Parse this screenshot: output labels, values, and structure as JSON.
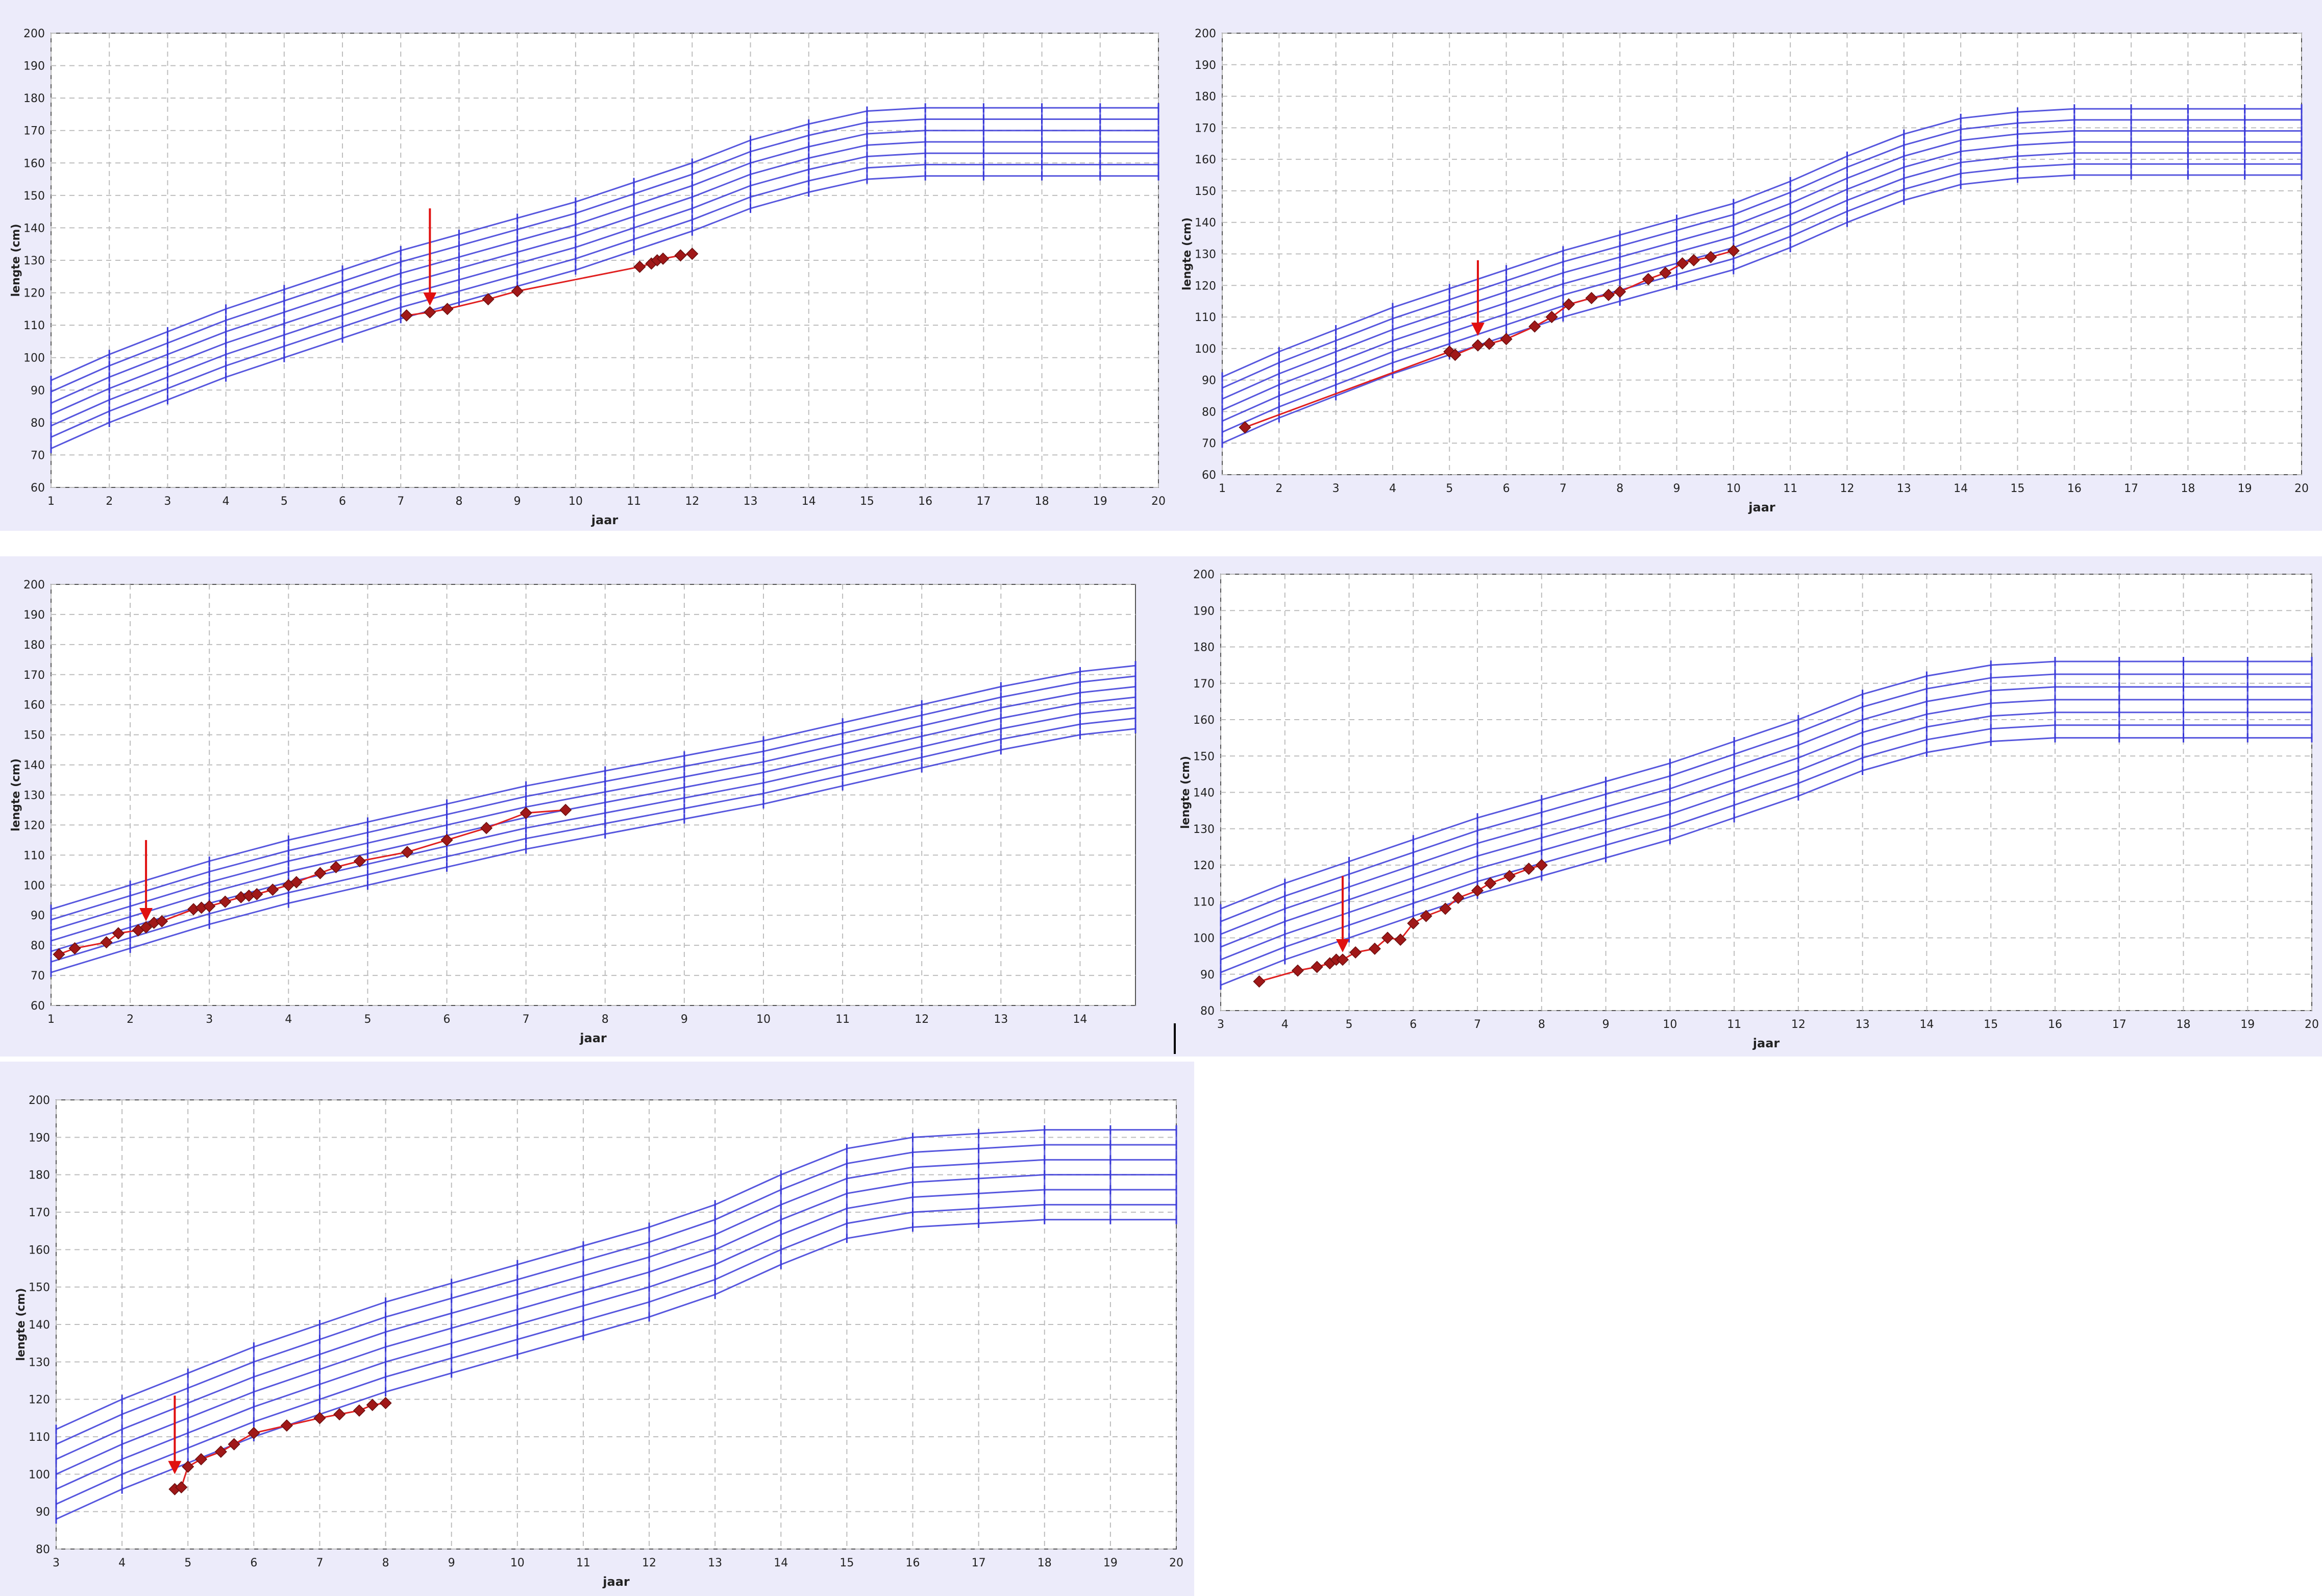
{
  "colors": {
    "panel_bg": "#ecebfa",
    "plot_bg": "#ffffff",
    "percentile_line": "#3a3ad8",
    "patient_line": "#e02020",
    "patient_marker": "#a01818",
    "arrow": "#e01010",
    "grid": "#bdbdbd",
    "text": "#222222"
  },
  "chart_data": [
    {
      "type": "line",
      "xlabel": "jaar",
      "ylabel": "lengte (cm)",
      "xlim": [
        1,
        20
      ],
      "ylim": [
        60,
        200
      ],
      "xticks": [
        1,
        2,
        3,
        4,
        5,
        6,
        7,
        8,
        9,
        10,
        11,
        12,
        13,
        14,
        15,
        16,
        17,
        18,
        19,
        20
      ],
      "yticks": [
        60,
        70,
        80,
        90,
        100,
        110,
        120,
        130,
        140,
        150,
        160,
        170,
        180,
        190,
        200
      ],
      "grid": true,
      "percentile_x": [
        1,
        2,
        3,
        4,
        5,
        6,
        7,
        8,
        9,
        10,
        11,
        12,
        13,
        14,
        15,
        16,
        17,
        18,
        19,
        20
      ],
      "percentile_base": [
        72,
        80,
        87,
        94,
        100,
        106,
        112,
        117,
        122,
        127,
        133,
        139,
        146,
        151,
        155,
        156,
        156,
        156,
        156,
        156
      ],
      "percentile_steps": [
        0,
        3.5,
        7,
        10.5,
        14,
        17.5,
        21
      ],
      "series": [
        {
          "values": [
            [
              7.1,
              113
            ],
            [
              7.5,
              114
            ],
            [
              7.8,
              115
            ],
            [
              8.5,
              118
            ],
            [
              9,
              120.5
            ],
            [
              11.1,
              128
            ],
            [
              11.3,
              129
            ],
            [
              11.4,
              130
            ],
            [
              11.5,
              130.5
            ],
            [
              11.8,
              131.5
            ],
            [
              12,
              132
            ]
          ]
        }
      ],
      "arrow": {
        "x": 7.5,
        "y_from": 146,
        "y_to": 116
      }
    },
    {
      "type": "line",
      "xlabel": "jaar",
      "ylabel": "lengte (cm)",
      "xlim": [
        1,
        20
      ],
      "ylim": [
        60,
        200
      ],
      "xticks": [
        1,
        2,
        3,
        4,
        5,
        6,
        7,
        8,
        9,
        10,
        11,
        12,
        13,
        14,
        15,
        16,
        17,
        18,
        19,
        20
      ],
      "yticks": [
        60,
        70,
        80,
        90,
        100,
        110,
        120,
        130,
        140,
        150,
        160,
        170,
        180,
        190,
        200
      ],
      "grid": true,
      "percentile_x": [
        1,
        2,
        3,
        4,
        5,
        6,
        7,
        8,
        9,
        10,
        11,
        12,
        13,
        14,
        15,
        16,
        17,
        18,
        19,
        20
      ],
      "percentile_base": [
        70,
        78,
        85,
        92,
        98,
        104,
        110,
        115,
        120,
        125,
        132,
        140,
        147,
        152,
        154,
        155,
        155,
        155,
        155,
        155
      ],
      "percentile_steps": [
        0,
        3.5,
        7,
        10.5,
        14,
        17.5,
        21
      ],
      "series": [
        {
          "values": [
            [
              1.4,
              75
            ],
            [
              5,
              99
            ],
            [
              5.1,
              98
            ],
            [
              5.5,
              101
            ],
            [
              5.7,
              101.5
            ],
            [
              6,
              103
            ],
            [
              6.5,
              107
            ],
            [
              6.8,
              110
            ],
            [
              7.1,
              114
            ],
            [
              7.5,
              116
            ],
            [
              7.8,
              117
            ],
            [
              8,
              118
            ],
            [
              8.5,
              122
            ],
            [
              8.8,
              124
            ],
            [
              9.1,
              127
            ],
            [
              9.3,
              128
            ],
            [
              9.6,
              129
            ],
            [
              10,
              131
            ]
          ]
        }
      ],
      "arrow": {
        "x": 5.5,
        "y_from": 128,
        "y_to": 104
      }
    },
    {
      "type": "line",
      "xlabel": "jaar",
      "ylabel": "lengte (cm)",
      "xlim": [
        1,
        14.7
      ],
      "ylim": [
        60,
        200
      ],
      "xticks": [
        1,
        2,
        3,
        4,
        5,
        6,
        7,
        8,
        9,
        10,
        11,
        12,
        13,
        14
      ],
      "yticks": [
        60,
        70,
        80,
        90,
        100,
        110,
        120,
        130,
        140,
        150,
        160,
        170,
        180,
        190,
        200
      ],
      "grid": true,
      "percentile_x": [
        1,
        2,
        3,
        4,
        5,
        6,
        7,
        8,
        9,
        10,
        11,
        12,
        13,
        14,
        14.7
      ],
      "percentile_base": [
        71,
        79,
        87,
        94,
        100,
        106,
        112,
        117,
        122,
        127,
        133,
        139,
        145,
        150,
        152
      ],
      "percentile_steps": [
        0,
        3.5,
        7,
        10.5,
        14,
        17.5,
        21
      ],
      "series": [
        {
          "values": [
            [
              1.1,
              77
            ],
            [
              1.3,
              79
            ],
            [
              1.7,
              81
            ],
            [
              1.85,
              84
            ],
            [
              2.1,
              85
            ],
            [
              2.2,
              86
            ],
            [
              2.3,
              87.5
            ],
            [
              2.4,
              88
            ],
            [
              2.8,
              92
            ],
            [
              2.9,
              92.5
            ],
            [
              3,
              93
            ],
            [
              3.2,
              94.5
            ],
            [
              3.4,
              96
            ],
            [
              3.5,
              96.5
            ],
            [
              3.6,
              97
            ],
            [
              3.8,
              98.5
            ],
            [
              4,
              100
            ],
            [
              4.1,
              101
            ],
            [
              4.4,
              104
            ],
            [
              4.6,
              106
            ],
            [
              4.9,
              108
            ],
            [
              5.5,
              111
            ],
            [
              6,
              115
            ],
            [
              6.5,
              119
            ],
            [
              7,
              124
            ],
            [
              7.5,
              125
            ]
          ]
        }
      ],
      "arrow": {
        "x": 2.2,
        "y_from": 115,
        "y_to": 88
      }
    },
    {
      "type": "line",
      "xlabel": "jaar",
      "ylabel": "lengte (cm)",
      "xlim": [
        3,
        20
      ],
      "ylim": [
        80,
        200
      ],
      "xticks": [
        3,
        4,
        5,
        6,
        7,
        8,
        9,
        10,
        11,
        12,
        13,
        14,
        15,
        16,
        17,
        18,
        19,
        20
      ],
      "yticks": [
        80,
        90,
        100,
        110,
        120,
        130,
        140,
        150,
        160,
        170,
        180,
        190,
        200
      ],
      "grid": true,
      "percentile_x": [
        3,
        4,
        5,
        6,
        7,
        8,
        9,
        10,
        11,
        12,
        13,
        14,
        15,
        16,
        17,
        18,
        19,
        20
      ],
      "percentile_base": [
        87,
        94,
        100,
        106,
        112,
        117,
        122,
        127,
        133,
        139,
        146,
        151,
        154,
        155,
        155,
        155,
        155,
        155
      ],
      "percentile_steps": [
        0,
        3.5,
        7,
        10.5,
        14,
        17.5,
        21
      ],
      "series": [
        {
          "values": [
            [
              3.6,
              88
            ],
            [
              4.2,
              91
            ],
            [
              4.5,
              92
            ],
            [
              4.7,
              93
            ],
            [
              4.8,
              94
            ],
            [
              4.9,
              94
            ],
            [
              5.1,
              96
            ],
            [
              5.4,
              97
            ],
            [
              5.6,
              100
            ],
            [
              5.8,
              99.5
            ],
            [
              6,
              104
            ],
            [
              6.2,
              106
            ],
            [
              6.5,
              108
            ],
            [
              6.7,
              111
            ],
            [
              7,
              113
            ],
            [
              7.2,
              115
            ],
            [
              7.5,
              117
            ],
            [
              7.8,
              119
            ],
            [
              8,
              120
            ]
          ]
        }
      ],
      "arrow": {
        "x": 4.9,
        "y_from": 117,
        "y_to": 96
      }
    },
    {
      "type": "line",
      "xlabel": "jaar",
      "ylabel": "lengte (cm)",
      "xlim": [
        3,
        20
      ],
      "ylim": [
        80,
        200
      ],
      "xticks": [
        3,
        4,
        5,
        6,
        7,
        8,
        9,
        10,
        11,
        12,
        13,
        14,
        15,
        16,
        17,
        18,
        19,
        20
      ],
      "yticks": [
        80,
        90,
        100,
        110,
        120,
        130,
        140,
        150,
        160,
        170,
        180,
        190,
        200
      ],
      "grid": true,
      "percentile_x": [
        3,
        4,
        5,
        6,
        7,
        8,
        9,
        10,
        11,
        12,
        13,
        14,
        15,
        16,
        17,
        18,
        19,
        20
      ],
      "percentile_base": [
        88,
        96,
        103,
        110,
        116,
        122,
        127,
        132,
        137,
        142,
        148,
        156,
        163,
        166,
        167,
        168,
        168,
        168
      ],
      "percentile_steps": [
        0,
        4,
        8,
        12,
        16,
        20,
        24
      ],
      "series": [
        {
          "values": [
            [
              4.8,
              96
            ],
            [
              4.9,
              96.5
            ],
            [
              5,
              102
            ],
            [
              5.2,
              104
            ],
            [
              5.5,
              106
            ],
            [
              5.7,
              108
            ],
            [
              6,
              111
            ],
            [
              6.5,
              113
            ],
            [
              7,
              115
            ],
            [
              7.3,
              116
            ],
            [
              7.6,
              117
            ],
            [
              7.8,
              118.5
            ],
            [
              8,
              119
            ]
          ]
        }
      ],
      "arrow": {
        "x": 4.8,
        "y_from": 121,
        "y_to": 100
      }
    }
  ]
}
